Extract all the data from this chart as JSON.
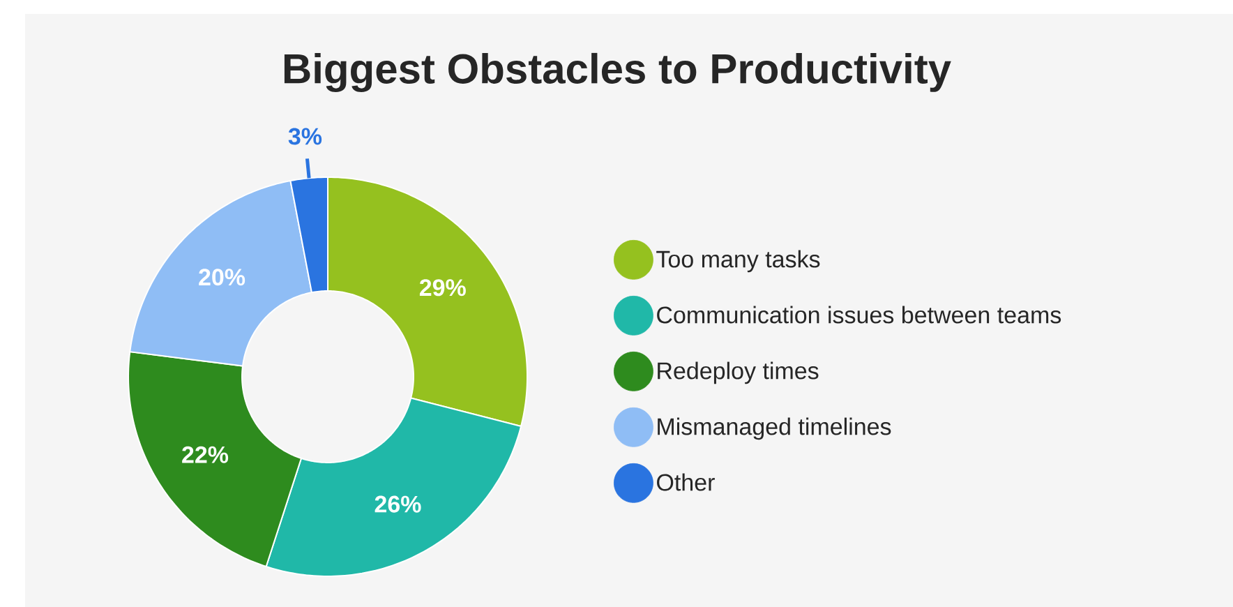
{
  "chart_data": {
    "type": "donut",
    "title": "Biggest Obstacles to Productivity",
    "categories": [
      "Too many tasks",
      "Communication issues between teams",
      "Redeploy times",
      "Mismanaged timelines",
      "Other"
    ],
    "values": [
      29,
      26,
      22,
      20,
      3
    ],
    "value_labels": [
      "29%",
      "26%",
      "22%",
      "20%",
      "3%"
    ],
    "colors": [
      "#95c11f",
      "#20b8a8",
      "#2e8b1e",
      "#8fbdf5",
      "#2a74e0"
    ],
    "legend": "right"
  }
}
